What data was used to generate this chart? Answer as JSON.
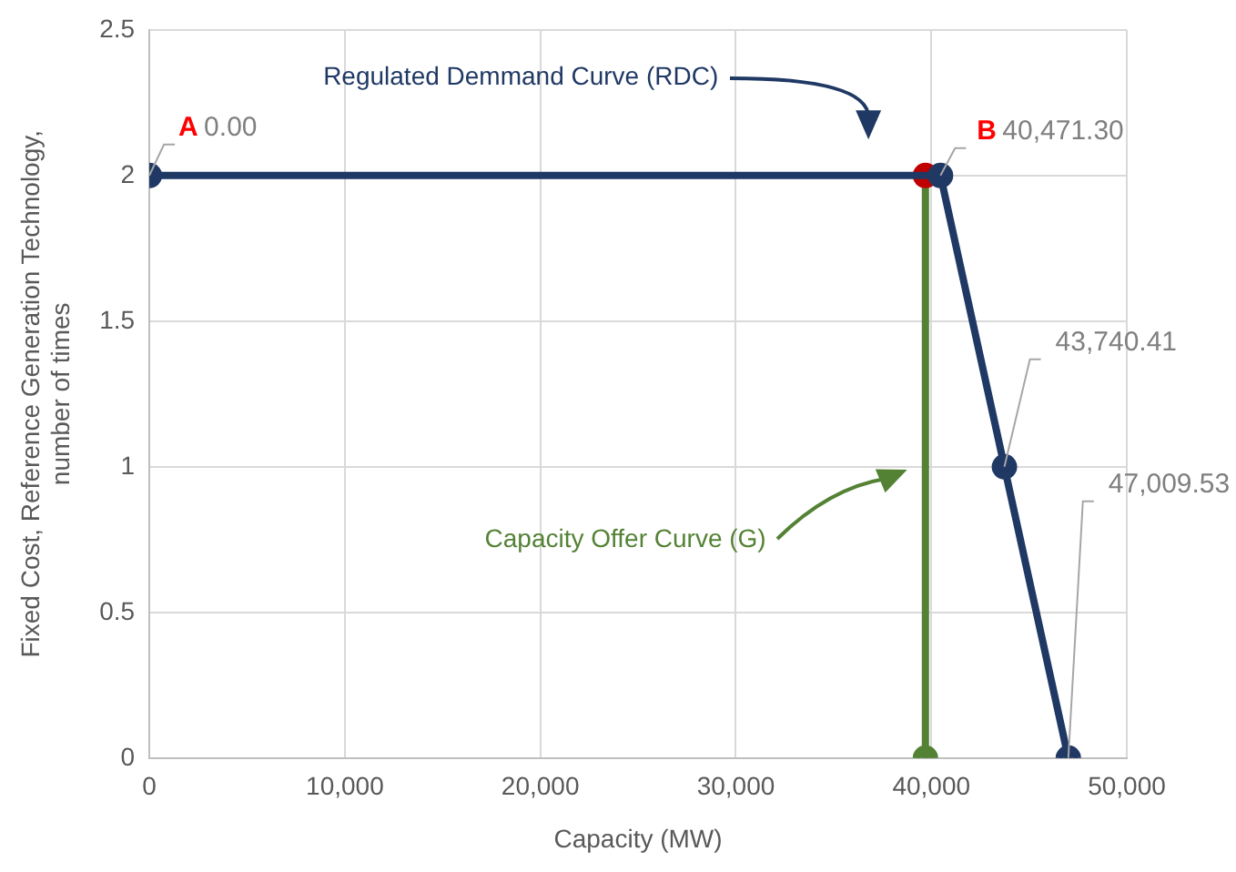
{
  "chart_data": {
    "type": "line",
    "xlabel": "Capacity (MW)",
    "ylabel": "Fixed Cost, Reference Generation Technology, number of times",
    "xlim": [
      0,
      50000
    ],
    "xticks": [
      0,
      {
        "value": 10000,
        "label": "10,000"
      },
      {
        "value": 20000,
        "label": "20,000"
      },
      {
        "value": 30000,
        "label": "30,000"
      },
      {
        "value": 40000,
        "label": "40,000"
      },
      {
        "value": 50000,
        "label": "50,000"
      }
    ],
    "ylim": [
      0,
      2.5
    ],
    "yticks": [
      0,
      0.5,
      1,
      1.5,
      2,
      2.5
    ],
    "grid": true,
    "legend": false,
    "marker": "circle",
    "line_style": "solid",
    "series": [
      {
        "color": "#1f3864",
        "x": [
          0,
          40471.3,
          43740.41,
          47009.53
        ],
        "values": [
          2,
          2,
          1,
          0
        ]
      },
      {
        "color": "#548235",
        "colors": [
          "#548235",
          "#c00000"
        ],
        "x": [
          39700,
          39700
        ],
        "values": [
          0,
          2
        ]
      }
    ],
    "annotations": [
      {
        "text": "A",
        "x": 0,
        "y": 2
      },
      {
        "text": "0.00",
        "x": 0,
        "y": 2
      },
      {
        "text": "B",
        "x": 40471.3,
        "y": 2
      },
      {
        "text": "40,471.30",
        "x": 40471.3,
        "y": 2
      },
      {
        "text": "43,740.41",
        "x": 43740.41,
        "y": 1
      },
      {
        "text": "47,009.53",
        "x": 47009.53,
        "y": 0
      },
      "Regulated Demmand Curve (RDC)",
      "Capacity Offer Curve (G)"
    ]
  }
}
